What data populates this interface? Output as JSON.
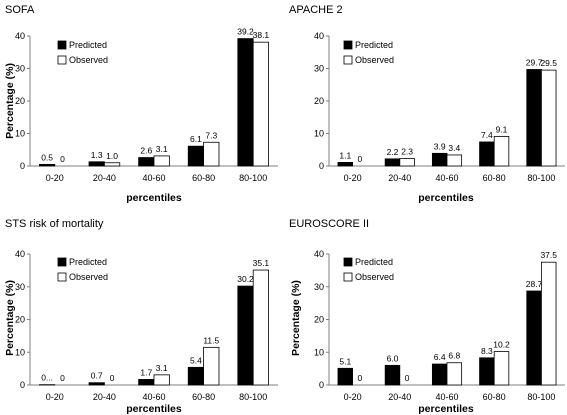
{
  "chart_data": [
    {
      "type": "bar",
      "title": "SOFA",
      "xlabel": "percentiles",
      "ylabel": "Percentage (%)",
      "ylim": [
        0,
        40
      ],
      "yticks": [
        "0",
        "10",
        "20",
        "30",
        "40"
      ],
      "categories": [
        "0-20",
        "20-40",
        "40-60",
        "60-80",
        "80-100"
      ],
      "legend_position": "left",
      "series": [
        {
          "name": "Predicted",
          "color": "#000000",
          "values": [
            0.5,
            1.3,
            2.6,
            6.1,
            39.2
          ],
          "labels": [
            "0.5",
            "1.3",
            "2.6",
            "6.1",
            "39.2"
          ]
        },
        {
          "name": "Observed",
          "color": "#ffffff",
          "values": [
            0,
            1.0,
            3.1,
            7.3,
            38.1
          ],
          "labels": [
            "0",
            "1.0",
            "3.1",
            "7.3",
            "38.1"
          ]
        }
      ]
    },
    {
      "type": "bar",
      "title": "APACHE 2",
      "xlabel": "percentiles",
      "ylabel": "",
      "ylim": [
        0,
        40
      ],
      "yticks": [
        "0",
        "10",
        "20",
        "30",
        "40"
      ],
      "categories": [
        "0-20",
        "20-40",
        "40-60",
        "60-80",
        "80-100"
      ],
      "legend_position": "left",
      "series": [
        {
          "name": "Predicted",
          "color": "#000000",
          "values": [
            1.1,
            2.2,
            3.9,
            7.4,
            29.7
          ],
          "labels": [
            "1.1",
            "2.2",
            "3.9",
            "7.4",
            "29.7"
          ]
        },
        {
          "name": "Observed",
          "color": "#ffffff",
          "values": [
            0,
            2.3,
            3.4,
            9.1,
            29.5
          ],
          "labels": [
            "0",
            "2.3",
            "3.4",
            "9.1",
            "29.5"
          ]
        }
      ]
    },
    {
      "type": "bar",
      "title": "STS risk of mortality",
      "xlabel": "percentiles",
      "ylabel": "Percentage (%)",
      "ylim": [
        0,
        40
      ],
      "yticks": [
        "0",
        "10",
        "20",
        "30",
        "40"
      ],
      "categories": [
        "0-20",
        "20-40",
        "40-60",
        "60-80",
        "80-100"
      ],
      "legend_position": "left",
      "series": [
        {
          "name": "Predicted",
          "color": "#000000",
          "values": [
            0.1,
            0.7,
            1.7,
            5.4,
            30.2
          ],
          "labels": [
            "0...",
            "0.7",
            "1.7",
            "5.4",
            "30.2"
          ]
        },
        {
          "name": "Observed",
          "color": "#ffffff",
          "values": [
            0,
            0,
            3.1,
            11.5,
            35.1
          ],
          "labels": [
            "0",
            "0",
            "3.1",
            "11.5",
            "35.1"
          ]
        }
      ]
    },
    {
      "type": "bar",
      "title": "EUROSCORE II",
      "xlabel": "percentiles",
      "ylabel": "Percentage (%)",
      "ylim": [
        0,
        40
      ],
      "yticks": [
        "0",
        "10",
        "20",
        "30",
        "40"
      ],
      "categories": [
        "0-20",
        "20-40",
        "40-60",
        "60-80",
        "80-100"
      ],
      "legend_position": "left",
      "series": [
        {
          "name": "Predicted",
          "color": "#000000",
          "values": [
            5.1,
            6.0,
            6.4,
            8.3,
            28.7
          ],
          "labels": [
            "5.1",
            "6.0",
            "6.4",
            "8.3",
            "28.7"
          ]
        },
        {
          "name": "Observed",
          "color": "#ffffff",
          "values": [
            0,
            0,
            6.8,
            10.2,
            37.5
          ],
          "labels": [
            "0",
            "0",
            "6.8",
            "10.2",
            "37.5"
          ]
        }
      ]
    }
  ]
}
